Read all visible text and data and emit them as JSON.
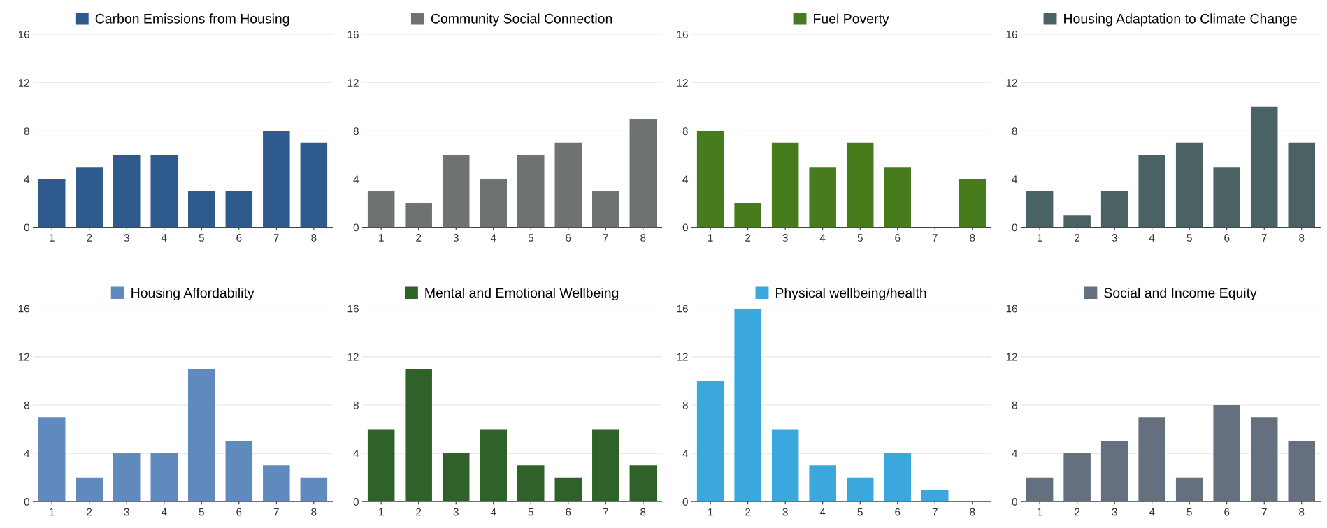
{
  "chart_data": [
    {
      "type": "bar",
      "categories": [
        "1",
        "2",
        "3",
        "4",
        "5",
        "6",
        "7",
        "8"
      ],
      "series": [
        {
          "name": "Carbon Emissions from Housing",
          "color": "#2e5a8e",
          "values": [
            4,
            5,
            6,
            6,
            3,
            3,
            8,
            7
          ]
        }
      ],
      "ylim": [
        0,
        16
      ],
      "yticks": [
        0,
        4,
        8,
        12,
        16
      ],
      "grid": "y",
      "legend": "top"
    },
    {
      "type": "bar",
      "categories": [
        "1",
        "2",
        "3",
        "4",
        "5",
        "6",
        "7",
        "8"
      ],
      "series": [
        {
          "name": "Community Social Connection",
          "color": "#6e7370",
          "values": [
            3,
            2,
            6,
            4,
            6,
            7,
            3,
            9
          ]
        }
      ],
      "ylim": [
        0,
        16
      ],
      "yticks": [
        0,
        4,
        8,
        12,
        16
      ],
      "grid": "y",
      "legend": "top"
    },
    {
      "type": "bar",
      "categories": [
        "1",
        "2",
        "3",
        "4",
        "5",
        "6",
        "7",
        "8"
      ],
      "series": [
        {
          "name": "Fuel Poverty",
          "color": "#467c1c",
          "values": [
            8,
            2,
            7,
            5,
            7,
            5,
            0,
            4
          ]
        }
      ],
      "ylim": [
        0,
        16
      ],
      "yticks": [
        0,
        4,
        8,
        12,
        16
      ],
      "grid": "y",
      "legend": "top"
    },
    {
      "type": "bar",
      "categories": [
        "1",
        "2",
        "3",
        "4",
        "5",
        "6",
        "7",
        "8"
      ],
      "series": [
        {
          "name": "Housing Adaptation to Climate Change",
          "color": "#4a6264",
          "values": [
            3,
            1,
            3,
            6,
            7,
            5,
            10,
            7
          ]
        }
      ],
      "ylim": [
        0,
        16
      ],
      "yticks": [
        0,
        4,
        8,
        12,
        16
      ],
      "grid": "y",
      "legend": "top"
    },
    {
      "type": "bar",
      "categories": [
        "1",
        "2",
        "3",
        "4",
        "5",
        "6",
        "7",
        "8"
      ],
      "series": [
        {
          "name": "Housing Affordability",
          "color": "#6089bd",
          "values": [
            7,
            2,
            4,
            4,
            11,
            5,
            3,
            2
          ]
        }
      ],
      "ylim": [
        0,
        16
      ],
      "yticks": [
        0,
        4,
        8,
        12,
        16
      ],
      "grid": "y",
      "legend": "top"
    },
    {
      "type": "bar",
      "categories": [
        "1",
        "2",
        "3",
        "4",
        "5",
        "6",
        "7",
        "8"
      ],
      "series": [
        {
          "name": "Mental and Emotional Wellbeing",
          "color": "#2f6229",
          "values": [
            6,
            11,
            4,
            6,
            3,
            2,
            6,
            3
          ]
        }
      ],
      "ylim": [
        0,
        16
      ],
      "yticks": [
        0,
        4,
        8,
        12,
        16
      ],
      "grid": "y",
      "legend": "top"
    },
    {
      "type": "bar",
      "categories": [
        "1",
        "2",
        "3",
        "4",
        "5",
        "6",
        "7",
        "8"
      ],
      "series": [
        {
          "name": "Physical wellbeing/health",
          "color": "#3aa8dc",
          "values": [
            10,
            16,
            6,
            3,
            2,
            4,
            1,
            0
          ]
        }
      ],
      "ylim": [
        0,
        16
      ],
      "yticks": [
        0,
        4,
        8,
        12,
        16
      ],
      "grid": "y",
      "legend": "top"
    },
    {
      "type": "bar",
      "categories": [
        "1",
        "2",
        "3",
        "4",
        "5",
        "6",
        "7",
        "8"
      ],
      "series": [
        {
          "name": "Social and Income Equity",
          "color": "#65707f",
          "values": [
            2,
            4,
            5,
            7,
            2,
            8,
            7,
            5
          ]
        }
      ],
      "ylim": [
        0,
        16
      ],
      "yticks": [
        0,
        4,
        8,
        12,
        16
      ],
      "grid": "y",
      "legend": "top"
    }
  ]
}
